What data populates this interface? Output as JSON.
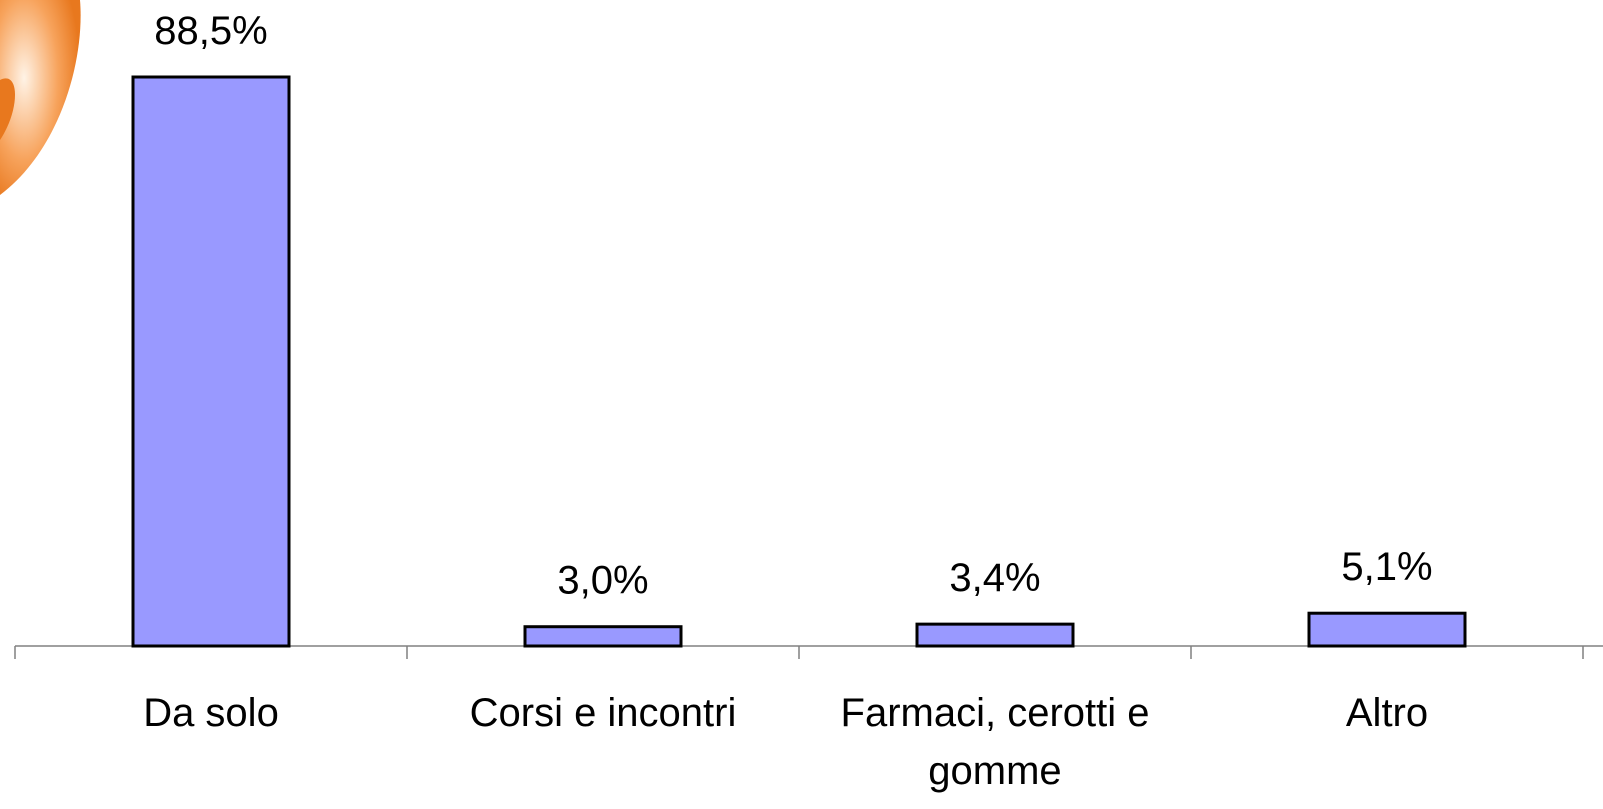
{
  "chart_data": {
    "type": "bar",
    "categories": [
      "Da solo",
      "Corsi e incontri",
      "Farmaci, cerotti e gomme",
      "Altro"
    ],
    "values": [
      88.5,
      3.0,
      3.4,
      5.1
    ],
    "value_labels": [
      "88,5%",
      "3,0%",
      "3,4%",
      "5,1%"
    ],
    "color": "#9999ff"
  }
}
